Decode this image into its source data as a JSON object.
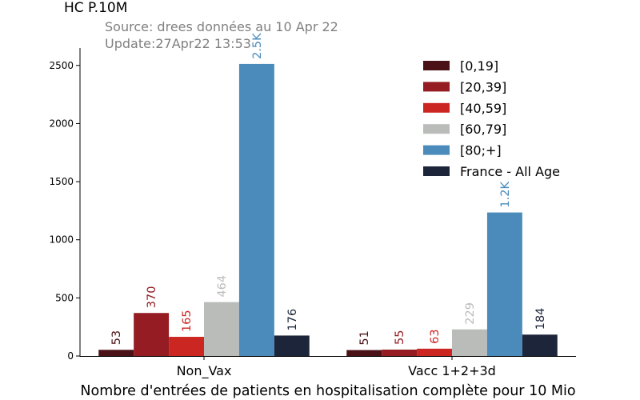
{
  "chart_data": {
    "type": "bar",
    "title": "HC P.10M",
    "subtitle_lines": [
      "Source: drees données au 10 Apr 22",
      "Update:27Apr22 13:53"
    ],
    "xlabel": "Nombre d'entrées de patients en hospitalisation complète pour 10 Mio",
    "ylabel": "",
    "categories": [
      "Non_Vax",
      "Vacc 1+2+3d"
    ],
    "ylim": [
      0,
      2650
    ],
    "yticks": [
      0,
      500,
      1000,
      1500,
      2000,
      2500
    ],
    "grid": false,
    "legend_position": "top-right",
    "series": [
      {
        "name": "[0,19]",
        "color": "#4a1216",
        "values": [
          53,
          51
        ],
        "labels": [
          "53",
          "51"
        ]
      },
      {
        "name": "[20,39]",
        "color": "#951c22",
        "values": [
          370,
          55
        ],
        "labels": [
          "370",
          "55"
        ]
      },
      {
        "name": "[40,59]",
        "color": "#cc2623",
        "values": [
          165,
          63
        ],
        "labels": [
          "165",
          "63"
        ]
      },
      {
        "name": "[60,79]",
        "color": "#babcba",
        "values": [
          464,
          229
        ],
        "labels": [
          "464",
          "229"
        ]
      },
      {
        "name": "[80;+]",
        "color": "#4a8bbb",
        "values": [
          2513,
          1235
        ],
        "labels": [
          "2.5K",
          "1.2K"
        ]
      },
      {
        "name": "France - All Age",
        "color": "#1d253b",
        "values": [
          176,
          184
        ],
        "labels": [
          "176",
          "184"
        ]
      }
    ]
  }
}
